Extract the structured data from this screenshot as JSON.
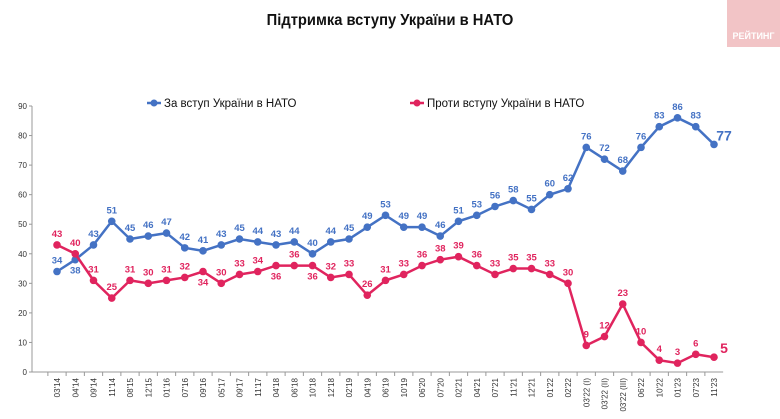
{
  "logo_text": "РЕЙТИНГ",
  "chart_data": {
    "type": "line",
    "title": "Підтримка вступу України в НАТО",
    "xlabel": "",
    "ylabel": "",
    "ylim": [
      0,
      90
    ],
    "yticks": [
      0,
      10,
      20,
      30,
      40,
      50,
      60,
      70,
      80,
      90
    ],
    "grid": false,
    "legend_position": "top",
    "categories": [
      "03'14",
      "04'14",
      "09'14",
      "11'14",
      "08'15",
      "12'15",
      "01'16",
      "07'16",
      "09'16",
      "05'17",
      "09'17",
      "11'17",
      "04'18",
      "06'18",
      "10'18",
      "12'18",
      "02'19",
      "04'19",
      "06'19",
      "10'19",
      "06'20",
      "07'20",
      "02'21",
      "04'21",
      "07'21",
      "11'21",
      "12'21",
      "01'22",
      "02'22",
      "03'22 (I)",
      "03'22 (II)",
      "03'22 (III)",
      "06'22",
      "10'22",
      "01'23",
      "07'23",
      "11'23"
    ],
    "series": [
      {
        "name": "За вступ України в НАТО",
        "color": "#4472C4",
        "values": [
          34,
          38,
          43,
          51,
          45,
          46,
          47,
          42,
          41,
          43,
          45,
          44,
          43,
          44,
          40,
          44,
          45,
          49,
          53,
          49,
          49,
          46,
          51,
          53,
          56,
          58,
          55,
          60,
          62,
          76,
          72,
          68,
          76,
          83,
          86,
          83,
          77
        ]
      },
      {
        "name": "Проти вступу України в НАТО",
        "color": "#E0245E",
        "values": [
          43,
          40,
          31,
          25,
          31,
          30,
          31,
          32,
          34,
          30,
          33,
          34,
          36,
          36,
          36,
          32,
          33,
          26,
          31,
          33,
          36,
          38,
          39,
          36,
          33,
          35,
          35,
          33,
          30,
          9,
          12,
          23,
          10,
          4,
          3,
          6,
          5
        ]
      }
    ]
  }
}
